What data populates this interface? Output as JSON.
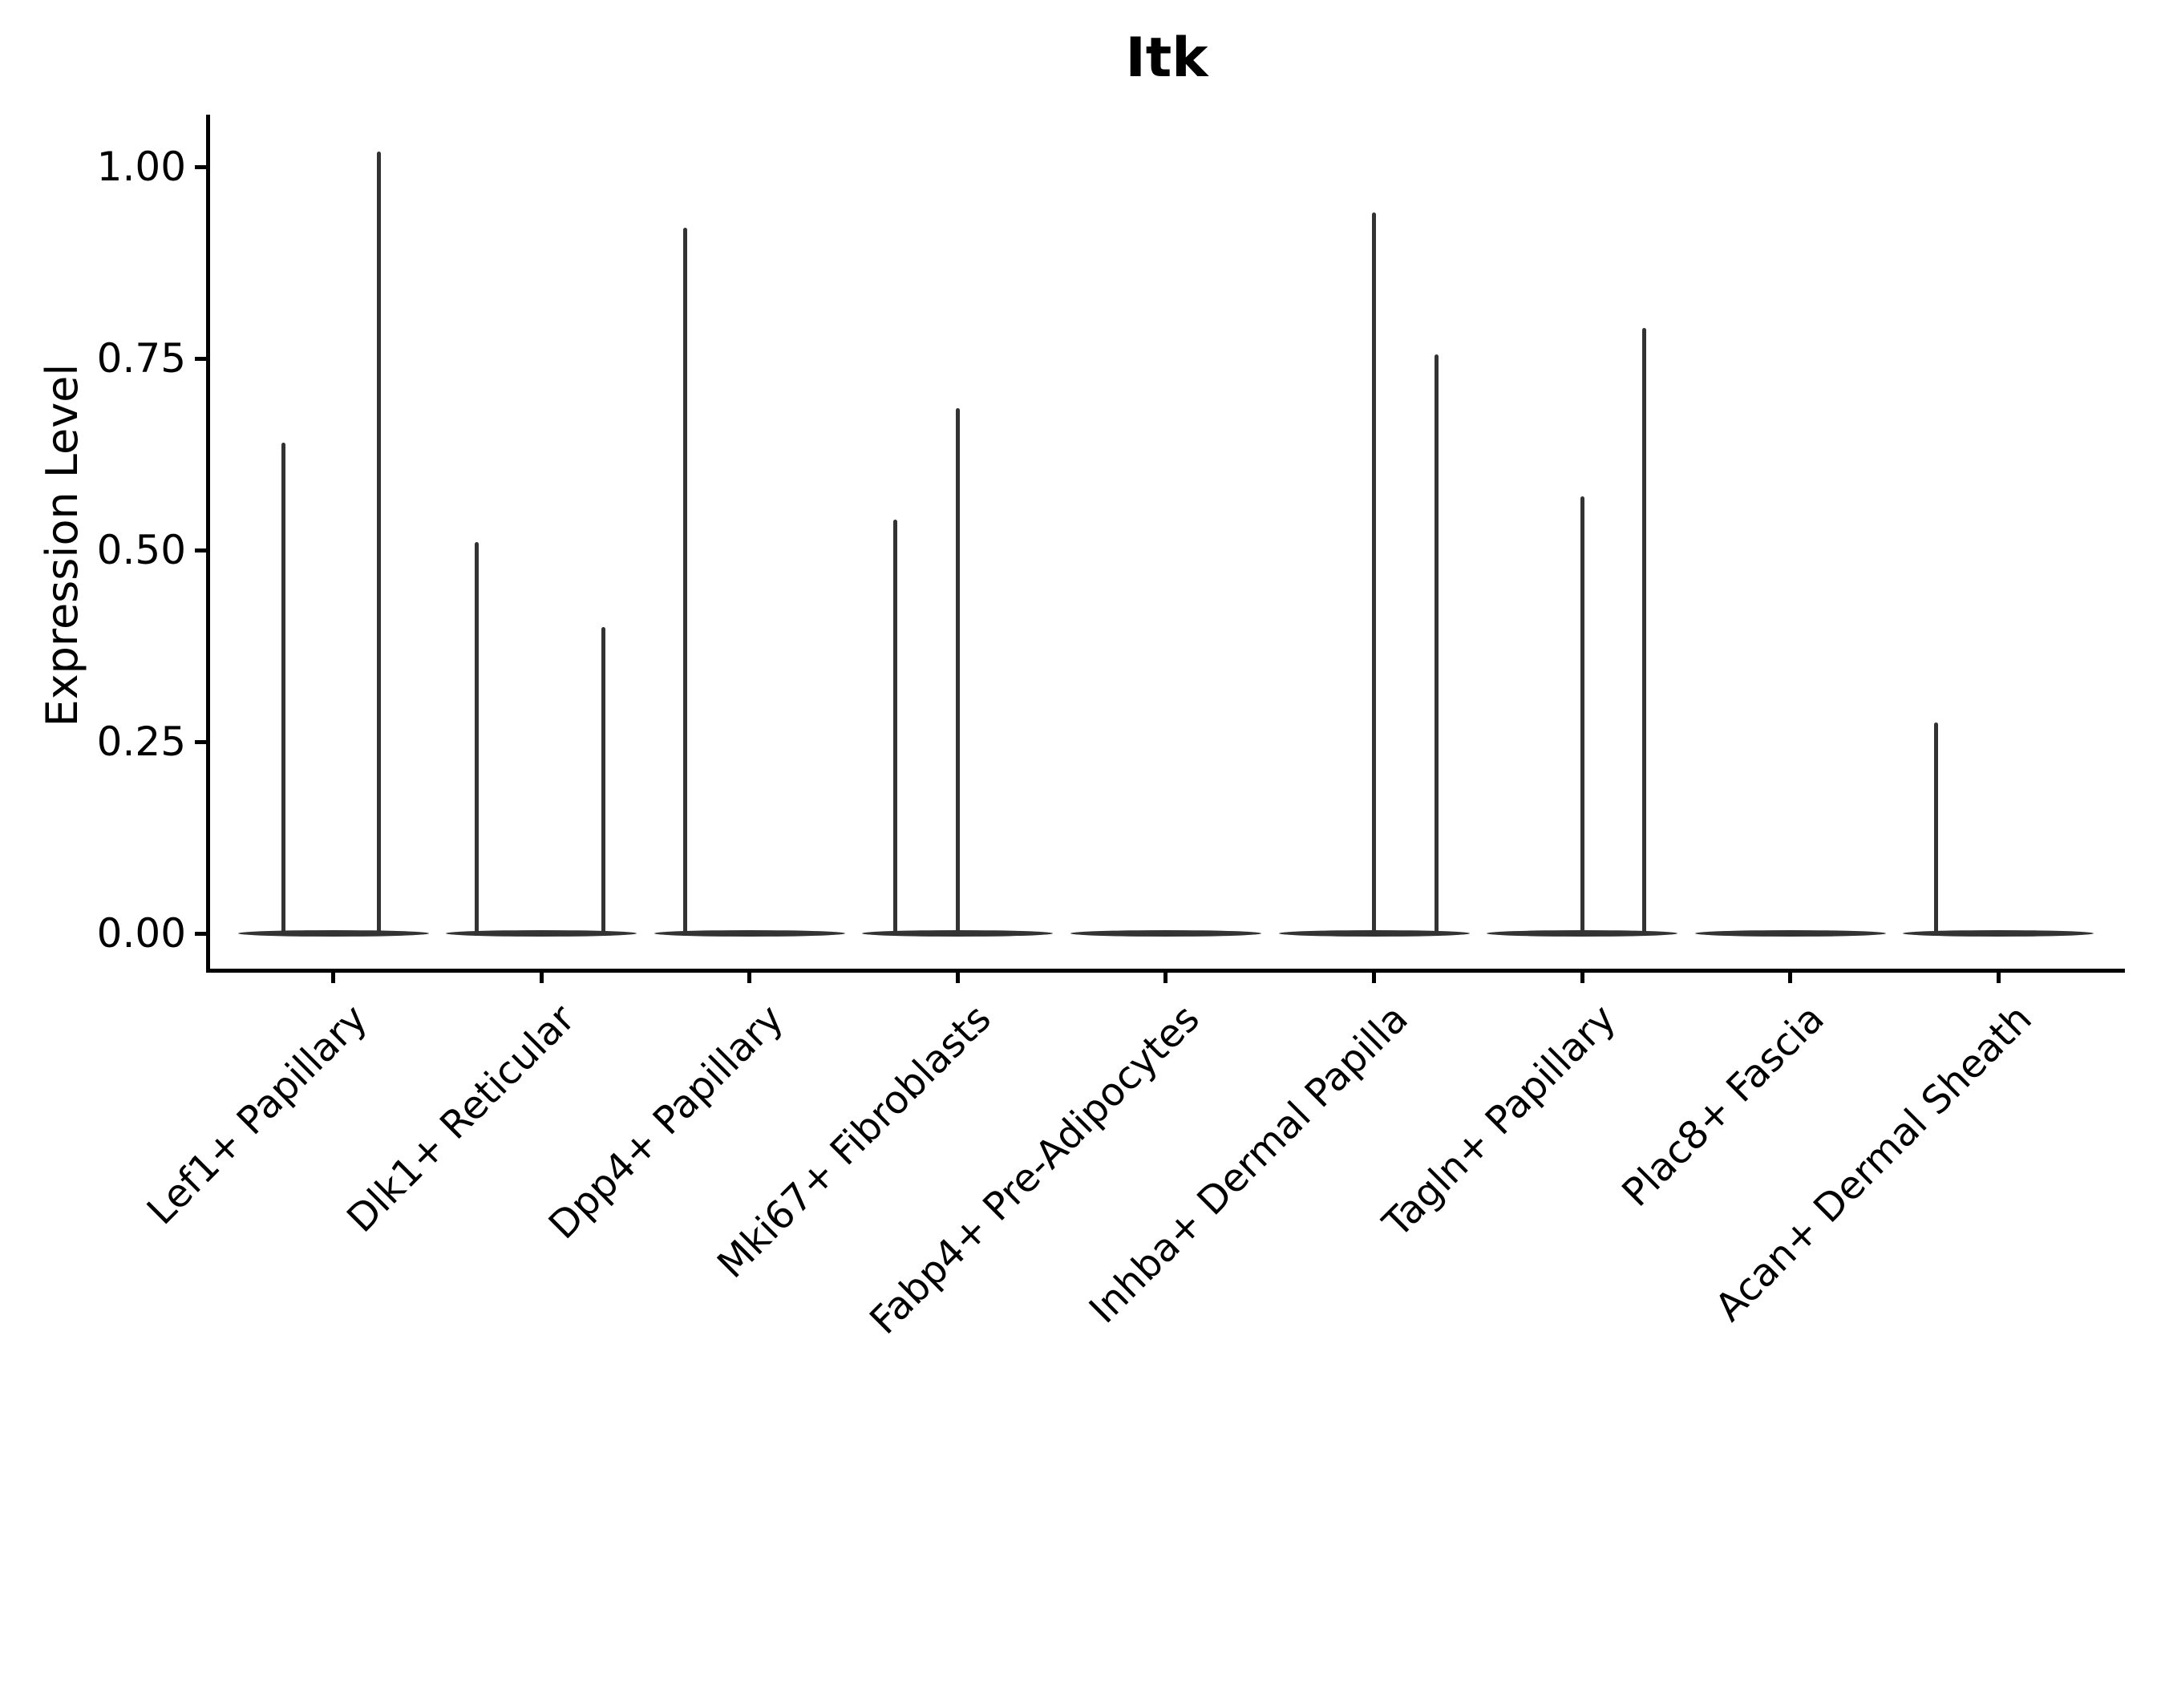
{
  "figure": {
    "title": "Itk",
    "y_axis_label": "Expression Level"
  },
  "chart_data": {
    "type": "violin",
    "title": "Itk",
    "xlabel": "",
    "ylabel": "Expression Level",
    "ylim": [
      -0.05,
      1.07
    ],
    "yticks": [
      0.0,
      0.25,
      0.5,
      0.75,
      1.0
    ],
    "ytick_labels": [
      "0.00",
      "0.25",
      "0.50",
      "0.75",
      "1.00"
    ],
    "grid": false,
    "legend": "none",
    "background": "#ffffff",
    "colors": {
      "violin": "#333333",
      "axis": "#000000",
      "text": "#000000"
    },
    "categories": [
      "Lef1+ Papillary",
      "Dlk1+ Reticular",
      "Dpp4+ Papillary",
      "Mki67+ Fibroblasts",
      "Fabp4+ Pre-Adipocytes",
      "Inhba+ Dermal Papilla",
      "Tagln+ Papillary",
      "Plac8+ Fascia",
      "Acan+ Dermal Sheath"
    ],
    "violin_width_fraction": 0.92,
    "violins": [
      {
        "category": "Lef1+ Papillary",
        "baseline_value": 0,
        "spikes": [
          {
            "offset": -0.24,
            "value": 0.64
          },
          {
            "offset": 0.22,
            "value": 1.02
          }
        ]
      },
      {
        "category": "Dlk1+ Reticular",
        "baseline_value": 0,
        "spikes": [
          {
            "offset": -0.31,
            "value": 0.51
          },
          {
            "offset": 0.3,
            "value": 0.4
          }
        ]
      },
      {
        "category": "Dpp4+ Papillary",
        "baseline_value": 0,
        "spikes": [
          {
            "offset": -0.31,
            "value": 0.92
          }
        ]
      },
      {
        "category": "Mki67+ Fibroblasts",
        "baseline_value": 0,
        "spikes": [
          {
            "offset": -0.3,
            "value": 0.54
          },
          {
            "offset": 0.0,
            "value": 0.685
          }
        ]
      },
      {
        "category": "Fabp4+ Pre-Adipocytes",
        "baseline_value": 0,
        "spikes": []
      },
      {
        "category": "Inhba+ Dermal Papilla",
        "baseline_value": 0,
        "spikes": [
          {
            "offset": 0.0,
            "value": 0.94
          },
          {
            "offset": 0.3,
            "value": 0.755
          }
        ]
      },
      {
        "category": "Tagln+ Papillary",
        "baseline_value": 0,
        "spikes": [
          {
            "offset": 0.0,
            "value": 0.57
          },
          {
            "offset": 0.3,
            "value": 0.79
          }
        ]
      },
      {
        "category": "Plac8+ Fascia",
        "baseline_value": 0,
        "spikes": []
      },
      {
        "category": "Acan+ Dermal Sheath",
        "baseline_value": 0,
        "spikes": [
          {
            "offset": -0.3,
            "value": 0.275
          }
        ]
      }
    ]
  }
}
